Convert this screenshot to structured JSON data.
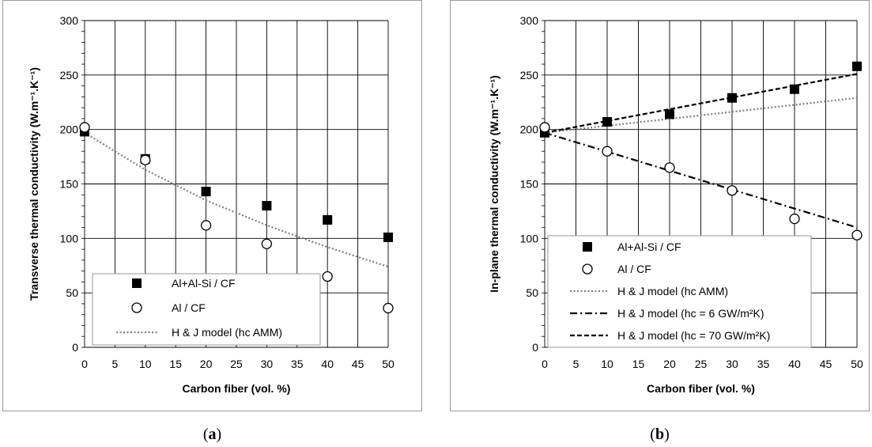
{
  "chart_data": [
    {
      "type": "scatter",
      "panel": "a",
      "xlabel": "Carbon fiber (vol. %)",
      "ylabel": "Transverse thermal conductivity (W.m⁻¹.K⁻¹)",
      "xlim": [
        0,
        50
      ],
      "ylim": [
        0,
        300
      ],
      "xticks": [
        0,
        5,
        10,
        15,
        20,
        25,
        30,
        35,
        40,
        45,
        50
      ],
      "yticks": [
        0,
        50,
        100,
        150,
        200,
        250,
        300
      ],
      "grid": true,
      "legend_position": "bottom-right",
      "series": [
        {
          "name": "Al+Al-Si / CF",
          "marker": "filled-square",
          "x": [
            0,
            10,
            20,
            30,
            40,
            50
          ],
          "y": [
            198,
            173,
            143,
            130,
            117,
            101
          ]
        },
        {
          "name": "Al / CF",
          "marker": "open-circle",
          "x": [
            0,
            10,
            20,
            30,
            40,
            50
          ],
          "y": [
            202,
            172,
            112,
            95,
            65,
            36
          ]
        },
        {
          "name": "H & J model (hc AMM)",
          "line": "dotted",
          "color": "#808080",
          "x": [
            0,
            10,
            20,
            30,
            40,
            50
          ],
          "y": [
            197,
            163,
            135,
            112,
            92,
            74
          ]
        }
      ]
    },
    {
      "type": "scatter",
      "panel": "b",
      "xlabel": "Carbon fiber (vol. %)",
      "ylabel": "In-plane thermal conductivity (W.m⁻¹.K⁻¹)",
      "xlim": [
        0,
        50
      ],
      "ylim": [
        0,
        300
      ],
      "xticks": [
        0,
        5,
        10,
        15,
        20,
        25,
        30,
        35,
        40,
        45,
        50
      ],
      "yticks": [
        0,
        50,
        100,
        150,
        200,
        250,
        300
      ],
      "grid": true,
      "legend_position": "bottom-left",
      "series": [
        {
          "name": "Al+Al-Si / CF",
          "marker": "filled-square",
          "x": [
            0,
            10,
            20,
            30,
            40,
            50
          ],
          "y": [
            197,
            207,
            214,
            229,
            237,
            258
          ]
        },
        {
          "name": "Al / CF",
          "marker": "open-circle",
          "x": [
            0,
            10,
            20,
            30,
            40,
            50
          ],
          "y": [
            202,
            180,
            165,
            144,
            118,
            103
          ]
        },
        {
          "name": "H & J model (hc AMM)",
          "line": "dotted",
          "color": "#808080",
          "x": [
            0,
            50
          ],
          "y": [
            197,
            229
          ]
        },
        {
          "name": "H & J model (hc = 6 GW/m²K)",
          "line": "dashdot",
          "color": "#000000",
          "x": [
            0,
            50
          ],
          "y": [
            197,
            110
          ]
        },
        {
          "name": "H & J model (hc = 70 GW/m²K)",
          "line": "dashed",
          "color": "#000000",
          "x": [
            0,
            50
          ],
          "y": [
            197,
            251
          ]
        }
      ]
    }
  ],
  "captions": {
    "a": {
      "open": "(",
      "letter": "a",
      "close": ")"
    },
    "b": {
      "open": "(",
      "letter": "b",
      "close": ")"
    }
  }
}
